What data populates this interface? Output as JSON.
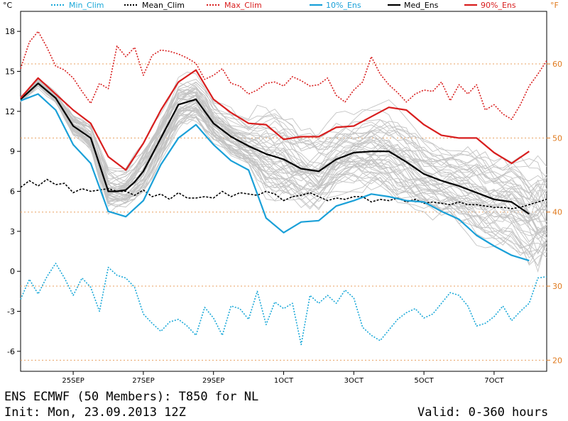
{
  "header": {
    "unit_left": "°C",
    "unit_right": "°F"
  },
  "footer": {
    "title": "ENS ECMWF (50 Members): T850 for NL",
    "init": "Init: Mon, 23.09.2013 12Z",
    "valid": "Valid: 0-360 hours"
  },
  "colors": {
    "min_clim": "#1aa8d8",
    "mean_clim": "#000000",
    "max_clim": "#d81e1e",
    "p10": "#1aa0d8",
    "median": "#000000",
    "p90": "#d81e1e",
    "members": "#c4c4c4",
    "f_grid": "#e8a060",
    "f_labels": "#e07a1e"
  },
  "chart_data": {
    "type": "line",
    "x_unit": "6-hourly steps from 23SEP 12Z",
    "xlim": [
      0,
      60
    ],
    "ylim": [
      -7.5,
      19.5
    ],
    "yticks": [
      -6,
      -3,
      0,
      3,
      6,
      9,
      12,
      15,
      18
    ],
    "ytick_labels": [
      "-6",
      "-3",
      "0",
      "3",
      "6",
      "9",
      "12",
      "15",
      "18"
    ],
    "f_ticks": [
      {
        "value_c": -6.667,
        "label": "20"
      },
      {
        "value_c": -1.111,
        "label": "30"
      },
      {
        "value_c": 4.444,
        "label": "40"
      },
      {
        "value_c": 10.0,
        "label": "50"
      },
      {
        "value_c": 15.556,
        "label": "60"
      }
    ],
    "xticks": [
      {
        "x": 6,
        "label": "25SEP"
      },
      {
        "x": 14,
        "label": "27SEP"
      },
      {
        "x": 22,
        "label": "29SEP"
      },
      {
        "x": 30,
        "label": "1OCT"
      },
      {
        "x": 38,
        "label": "3OCT"
      },
      {
        "x": 46,
        "label": "5OCT"
      },
      {
        "x": 54,
        "label": "7OCT"
      }
    ],
    "legend": [
      "Min_Clim",
      "Mean_Clim",
      "Max_Clim",
      "10%_Ens",
      "Med_Ens",
      "90%_Ens"
    ],
    "series": [
      {
        "name": "Min_Clim",
        "style": "dotted",
        "x": [
          0,
          1,
          2,
          3,
          4,
          5,
          6,
          7,
          8,
          9,
          10,
          11,
          12,
          13,
          14,
          15,
          16,
          17,
          18,
          19,
          20,
          21,
          22,
          23,
          24,
          25,
          26,
          27,
          28,
          29,
          30,
          31,
          32,
          33,
          34,
          35,
          36,
          37,
          38,
          39,
          40,
          41,
          42,
          43,
          44,
          45,
          46,
          47,
          48,
          49,
          50,
          51,
          52,
          53,
          54,
          55,
          56,
          57,
          58,
          59,
          60
        ],
        "values": [
          -2.1,
          -0.6,
          -1.7,
          -0.4,
          0.6,
          -0.5,
          -1.8,
          -0.5,
          -1.2,
          -3.0,
          0.3,
          -0.3,
          -0.5,
          -1.2,
          -3.2,
          -3.9,
          -4.5,
          -3.8,
          -3.6,
          -4.1,
          -4.8,
          -2.7,
          -3.5,
          -4.8,
          -2.6,
          -2.8,
          -3.6,
          -1.5,
          -4.0,
          -2.3,
          -2.8,
          -2.4,
          -5.5,
          -1.8,
          -2.4,
          -1.8,
          -2.4,
          -1.4,
          -2.0,
          -4.2,
          -4.8,
          -5.2,
          -4.4,
          -3.6,
          -3.1,
          -2.8,
          -3.5,
          -3.2,
          -2.4,
          -1.6,
          -1.8,
          -2.6,
          -4.1,
          -3.9,
          -3.4,
          -2.6,
          -3.7,
          -3.0,
          -2.4,
          -0.5,
          -0.4
        ]
      },
      {
        "name": "Mean_Clim",
        "style": "dashed",
        "x": [
          0,
          1,
          2,
          3,
          4,
          5,
          6,
          7,
          8,
          9,
          10,
          11,
          12,
          13,
          14,
          15,
          16,
          17,
          18,
          19,
          20,
          21,
          22,
          23,
          24,
          25,
          26,
          27,
          28,
          29,
          30,
          31,
          32,
          33,
          34,
          35,
          36,
          37,
          38,
          39,
          40,
          41,
          42,
          43,
          44,
          45,
          46,
          47,
          48,
          49,
          50,
          51,
          52,
          53,
          54,
          55,
          56,
          57,
          58,
          59,
          60
        ],
        "values": [
          6.3,
          6.8,
          6.4,
          6.9,
          6.5,
          6.6,
          5.9,
          6.2,
          6.0,
          6.1,
          6.2,
          6.0,
          6.0,
          5.7,
          6.1,
          5.6,
          5.8,
          5.4,
          5.9,
          5.5,
          5.5,
          5.6,
          5.5,
          6.0,
          5.6,
          5.9,
          5.8,
          5.7,
          6.0,
          5.8,
          5.3,
          5.6,
          5.7,
          5.9,
          5.6,
          5.3,
          5.5,
          5.4,
          5.6,
          5.6,
          5.2,
          5.4,
          5.3,
          5.5,
          5.2,
          5.4,
          5.1,
          5.2,
          5.1,
          5.0,
          5.2,
          5.0,
          5.0,
          4.9,
          4.8,
          4.8,
          4.7,
          4.8,
          5.0,
          5.2,
          5.4
        ]
      },
      {
        "name": "Max_Clim",
        "style": "dotted",
        "x": [
          0,
          1,
          2,
          3,
          4,
          5,
          6,
          7,
          8,
          9,
          10,
          11,
          12,
          13,
          14,
          15,
          16,
          17,
          18,
          19,
          20,
          21,
          22,
          23,
          24,
          25,
          26,
          27,
          28,
          29,
          30,
          31,
          32,
          33,
          34,
          35,
          36,
          37,
          38,
          39,
          40,
          41,
          42,
          43,
          44,
          45,
          46,
          47,
          48,
          49,
          50,
          51,
          52,
          53,
          54,
          55,
          56,
          57,
          58,
          59,
          60
        ],
        "values": [
          15.2,
          17.2,
          18.0,
          16.8,
          15.4,
          15.1,
          14.5,
          13.5,
          12.6,
          14.1,
          13.7,
          16.9,
          16.1,
          16.8,
          14.7,
          16.2,
          16.6,
          16.5,
          16.3,
          16.0,
          15.6,
          14.4,
          14.7,
          15.2,
          14.1,
          13.9,
          13.3,
          13.6,
          14.1,
          14.2,
          13.9,
          14.6,
          14.3,
          13.9,
          14.0,
          14.5,
          13.2,
          12.7,
          13.6,
          14.2,
          16.1,
          14.8,
          14.0,
          13.4,
          12.7,
          13.3,
          13.6,
          13.5,
          14.2,
          12.8,
          14.0,
          13.3,
          14.0,
          12.1,
          12.5,
          11.8,
          11.4,
          12.5,
          13.9,
          14.8,
          15.8
        ]
      },
      {
        "name": "10%_Ens",
        "style": "solid",
        "x": [
          0,
          2,
          4,
          6,
          8,
          10,
          12,
          14,
          16,
          18,
          20,
          22,
          24,
          26,
          28,
          30,
          32,
          34,
          36,
          38,
          40,
          42,
          44,
          46,
          48,
          50,
          52,
          54,
          56,
          58
        ],
        "values": [
          12.8,
          13.3,
          12.1,
          9.5,
          8.1,
          4.5,
          4.1,
          5.3,
          8.0,
          10.0,
          11.0,
          9.5,
          8.3,
          7.6,
          4.0,
          2.9,
          3.7,
          3.8,
          4.9,
          5.3,
          5.8,
          5.6,
          5.3,
          5.2,
          4.5,
          3.9,
          2.7,
          1.9,
          1.2,
          0.8
        ]
      },
      {
        "name": "Med_Ens",
        "style": "solid",
        "x": [
          0,
          2,
          4,
          6,
          8,
          10,
          11,
          12,
          13,
          14,
          16,
          18,
          20,
          22,
          24,
          26,
          28,
          30,
          32,
          34,
          36,
          38,
          40,
          42,
          44,
          46,
          48,
          50,
          52,
          54,
          56,
          58
        ],
        "values": [
          12.9,
          14.1,
          13.0,
          10.9,
          10.0,
          6.0,
          6.0,
          6.1,
          6.7,
          7.5,
          10.0,
          12.5,
          12.9,
          11.1,
          10.1,
          9.4,
          8.8,
          8.4,
          7.7,
          7.5,
          8.4,
          8.9,
          9.0,
          9.0,
          8.2,
          7.3,
          6.8,
          6.4,
          5.9,
          5.4,
          5.2,
          4.3
        ]
      },
      {
        "name": "90%_Ens",
        "style": "solid",
        "x": [
          0,
          2,
          4,
          6,
          8,
          10,
          12,
          14,
          16,
          18,
          20,
          22,
          24,
          26,
          28,
          30,
          32,
          34,
          36,
          38,
          40,
          42,
          44,
          46,
          48,
          50,
          52,
          54,
          56,
          58
        ],
        "values": [
          13.0,
          14.5,
          13.3,
          12.1,
          11.1,
          8.6,
          7.6,
          9.6,
          12.1,
          14.2,
          15.1,
          12.9,
          11.9,
          11.1,
          11.0,
          9.9,
          10.1,
          10.1,
          10.8,
          10.9,
          11.6,
          12.3,
          12.1,
          11.0,
          10.2,
          10.0,
          10.0,
          8.9,
          8.1,
          9.0
        ]
      }
    ]
  }
}
